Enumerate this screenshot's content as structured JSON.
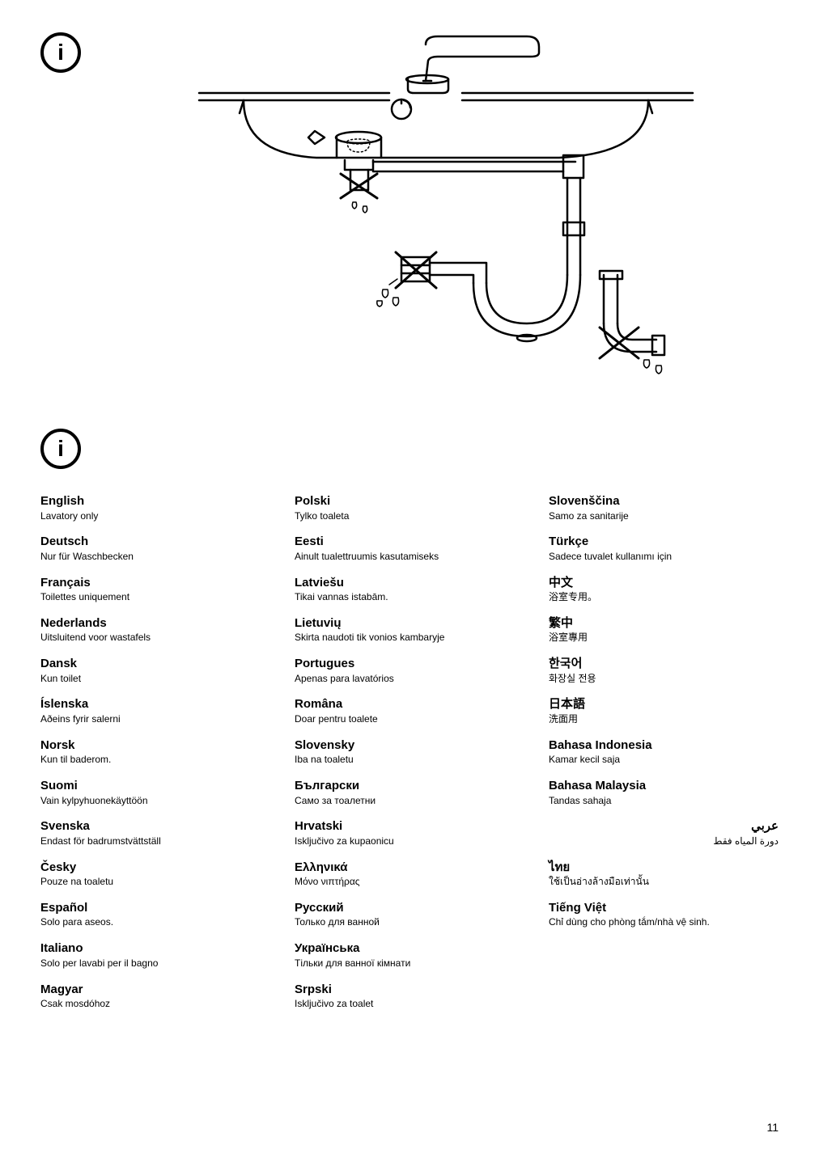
{
  "page_number": "11",
  "columns": [
    [
      {
        "name": "English",
        "desc": "Lavatory only"
      },
      {
        "name": "Deutsch",
        "desc": "Nur für Waschbecken"
      },
      {
        "name": "Français",
        "desc": "Toilettes uniquement"
      },
      {
        "name": "Nederlands",
        "desc": "Uitsluitend voor wastafels"
      },
      {
        "name": "Dansk",
        "desc": "Kun toilet"
      },
      {
        "name": "Íslenska",
        "desc": "Aðeins fyrir salerni"
      },
      {
        "name": "Norsk",
        "desc": "Kun til baderom."
      },
      {
        "name": "Suomi",
        "desc": "Vain kylpyhuonekäyttöön"
      },
      {
        "name": "Svenska",
        "desc": "Endast för badrumstvättställ"
      },
      {
        "name": "Česky",
        "desc": "Pouze na toaletu"
      },
      {
        "name": "Español",
        "desc": "Solo para aseos."
      },
      {
        "name": "Italiano",
        "desc": "Solo per lavabi per il bagno"
      },
      {
        "name": "Magyar",
        "desc": "Csak mosdóhoz"
      }
    ],
    [
      {
        "name": "Polski",
        "desc": "Tylko toaleta"
      },
      {
        "name": "Eesti",
        "desc": "Ainult tualettruumis kasutamiseks"
      },
      {
        "name": "Latviešu",
        "desc": "Tikai vannas istabām."
      },
      {
        "name": "Lietuvių",
        "desc": "Skirta naudoti tik vonios kambaryje"
      },
      {
        "name": "Portugues",
        "desc": "Apenas para lavatórios"
      },
      {
        "name": "Româna",
        "desc": "Doar pentru toalete"
      },
      {
        "name": "Slovensky",
        "desc": "Iba na toaletu"
      },
      {
        "name": "Български",
        "desc": "Само за тоалетни"
      },
      {
        "name": "Hrvatski",
        "desc": "Isključivo za kupaonicu"
      },
      {
        "name": "Ελληνικά",
        "desc": "Μόνο νιπτήρας"
      },
      {
        "name": "Русский",
        "desc": "Только для ванной"
      },
      {
        "name": "Українська",
        "desc": "Тільки для ванної кімнати"
      },
      {
        "name": "Srpski",
        "desc": "Isključivo za toalet"
      }
    ],
    [
      {
        "name": "Slovenščina",
        "desc": "Samo za sanitarije"
      },
      {
        "name": "Türkçe",
        "desc": "Sadece tuvalet kullanımı için"
      },
      {
        "name": "中文",
        "desc": "浴室专用。"
      },
      {
        "name": "繁中",
        "desc": "浴室專用"
      },
      {
        "name": "한국어",
        "desc": "화장실 전용"
      },
      {
        "name": "日本語",
        "desc": "洗面用"
      },
      {
        "name": "Bahasa Indonesia",
        "desc": "Kamar kecil saja"
      },
      {
        "name": "Bahasa Malaysia",
        "desc": "Tandas sahaja"
      },
      {
        "name": "عربي",
        "desc": "دورة المياه فقط",
        "rtl": true
      },
      {
        "name": "ไทย",
        "desc": "ใช้เป็นอ่างล้างมือเท่านั้น"
      },
      {
        "name": "Tiếng Việt",
        "desc": "Chỉ dùng cho phòng tắm/nhà vệ sinh."
      }
    ]
  ]
}
